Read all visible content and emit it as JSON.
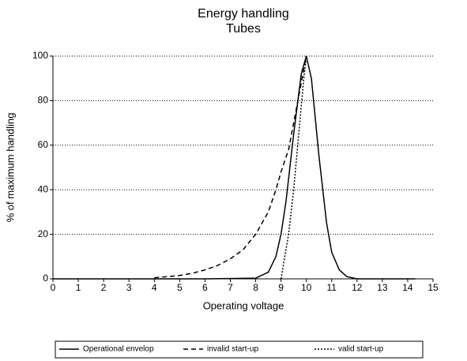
{
  "chart_data": {
    "type": "line",
    "title": "Energy handling",
    "subtitle": "Tubes",
    "x_label": "Operating voltage",
    "y_label": "% of maximum handling",
    "xlim": [
      0,
      15
    ],
    "ylim": [
      0,
      100
    ],
    "xticks": [
      0,
      1,
      2,
      3,
      4,
      5,
      6,
      7,
      8,
      9,
      10,
      11,
      12,
      13,
      14,
      15
    ],
    "yticks": [
      0,
      20,
      40,
      60,
      80,
      100
    ],
    "grid": true,
    "legend": "bottom",
    "series": [
      {
        "name": "Operational envelop",
        "color": "#000000",
        "dash": "solid",
        "x": [
          0,
          2,
          4,
          6,
          8,
          8.5,
          8.8,
          9,
          9.2,
          9.5,
          9.8,
          10,
          10.2,
          10.5,
          10.8,
          11,
          11.3,
          11.6,
          12,
          14.3
        ],
        "values": [
          0,
          0,
          0,
          0,
          0.3,
          3,
          10,
          20,
          35,
          65,
          92,
          100,
          90,
          55,
          25,
          12,
          4,
          1,
          0,
          0
        ]
      },
      {
        "name": "invalid start-up",
        "color": "#000000",
        "dash": "dashed",
        "x": [
          4,
          4.5,
          5,
          5.5,
          6,
          6.5,
          7,
          7.5,
          8,
          8.5,
          8.8,
          9,
          9.3,
          9.5,
          9.8,
          10
        ],
        "values": [
          0.5,
          1,
          1.5,
          2.5,
          4,
          6,
          9,
          13,
          20,
          30,
          40,
          48,
          58,
          70,
          88,
          100
        ]
      },
      {
        "name": "valid start-up",
        "color": "#000000",
        "dash": "dotted",
        "x": [
          9,
          9.3,
          9.5,
          9.7,
          9.9,
          10
        ],
        "values": [
          0,
          20,
          40,
          65,
          90,
          100
        ]
      }
    ]
  }
}
